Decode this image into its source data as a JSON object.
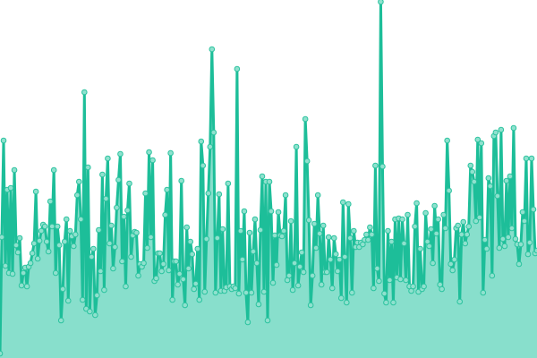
{
  "chart_data": {
    "type": "area",
    "title": "",
    "xlabel": "",
    "ylabel": "",
    "ylim": [
      0,
      400
    ],
    "grid": false,
    "axes_visible": false,
    "markers": true,
    "colors": {
      "line": "#1dbe99",
      "fill": "#88dfcc",
      "marker_fill": "#8fe1ce",
      "marker_stroke": "#2cc39f"
    },
    "values": [
      5,
      135,
      243,
      103,
      188,
      95,
      190,
      94,
      210,
      126,
      118,
      134,
      81,
      95,
      101,
      80,
      102,
      106,
      117,
      128,
      186,
      111,
      131,
      142,
      149,
      147,
      130,
      119,
      175,
      147,
      210,
      95,
      147,
      126,
      42,
      77,
      130,
      155,
      64,
      142,
      136,
      125,
      138,
      182,
      197,
      155,
      65,
      297,
      55,
      213,
      52,
      113,
      122,
      48,
      70,
      143,
      97,
      205,
      76,
      178,
      223,
      128,
      148,
      100,
      124,
      168,
      199,
      228,
      108,
      158,
      80,
      165,
      195,
      113,
      137,
      141,
      140,
      92,
      105,
      102,
      106,
      184,
      123,
      230,
      135,
      221,
      86,
      89,
      117,
      117,
      97,
      105,
      160,
      188,
      98,
      229,
      65,
      108,
      108,
      82,
      94,
      198,
      88,
      59,
      146,
      100,
      130,
      116,
      77,
      83,
      122,
      65,
      242,
      215,
      74,
      133,
      184,
      236,
      345,
      252,
      73,
      134,
      183,
      75,
      144,
      75,
      79,
      195,
      80,
      77,
      80,
      78,
      323,
      72,
      142,
      110,
      164,
      73,
      40,
      140,
      73,
      119,
      155,
      106,
      60,
      143,
      203,
      74,
      197,
      42,
      197,
      164,
      84,
      137,
      104,
      163,
      137,
      136,
      142,
      182,
      87,
      92,
      153,
      76,
      106,
      236,
      81,
      102,
      118,
      96,
      267,
      220,
      154,
      59,
      92,
      150,
      123,
      182,
      139,
      82,
      148,
      96,
      96,
      135,
      110,
      78,
      134,
      116,
      97,
      110,
      67,
      174,
      113,
      62,
      172,
      134,
      73,
      142,
      124,
      129,
      124,
      129,
      127,
      132,
      138,
      132,
      146,
      138,
      78,
      215,
      100,
      86,
      398,
      214,
      72,
      62,
      142,
      87,
      130,
      62,
      155,
      90,
      156,
      88,
      155,
      128,
      87,
      160,
      80,
      75,
      80,
      147,
      173,
      74,
      122,
      77,
      80,
      162,
      130,
      125,
      144,
      106,
      170,
      139,
      155,
      82,
      77,
      160,
      145,
      243,
      187,
      105,
      98,
      110,
      145,
      148,
      63,
      138,
      152,
      128,
      138,
      147,
      215,
      208,
      197,
      153,
      244,
      157,
      240,
      73,
      132,
      122,
      201,
      192,
      92,
      248,
      252,
      181,
      123,
      255,
      133,
      125,
      198,
      135,
      203,
      145,
      257,
      133,
      127,
      105,
      127,
      163,
      153,
      223,
      116,
      129,
      223,
      166,
      117,
      120
    ]
  }
}
